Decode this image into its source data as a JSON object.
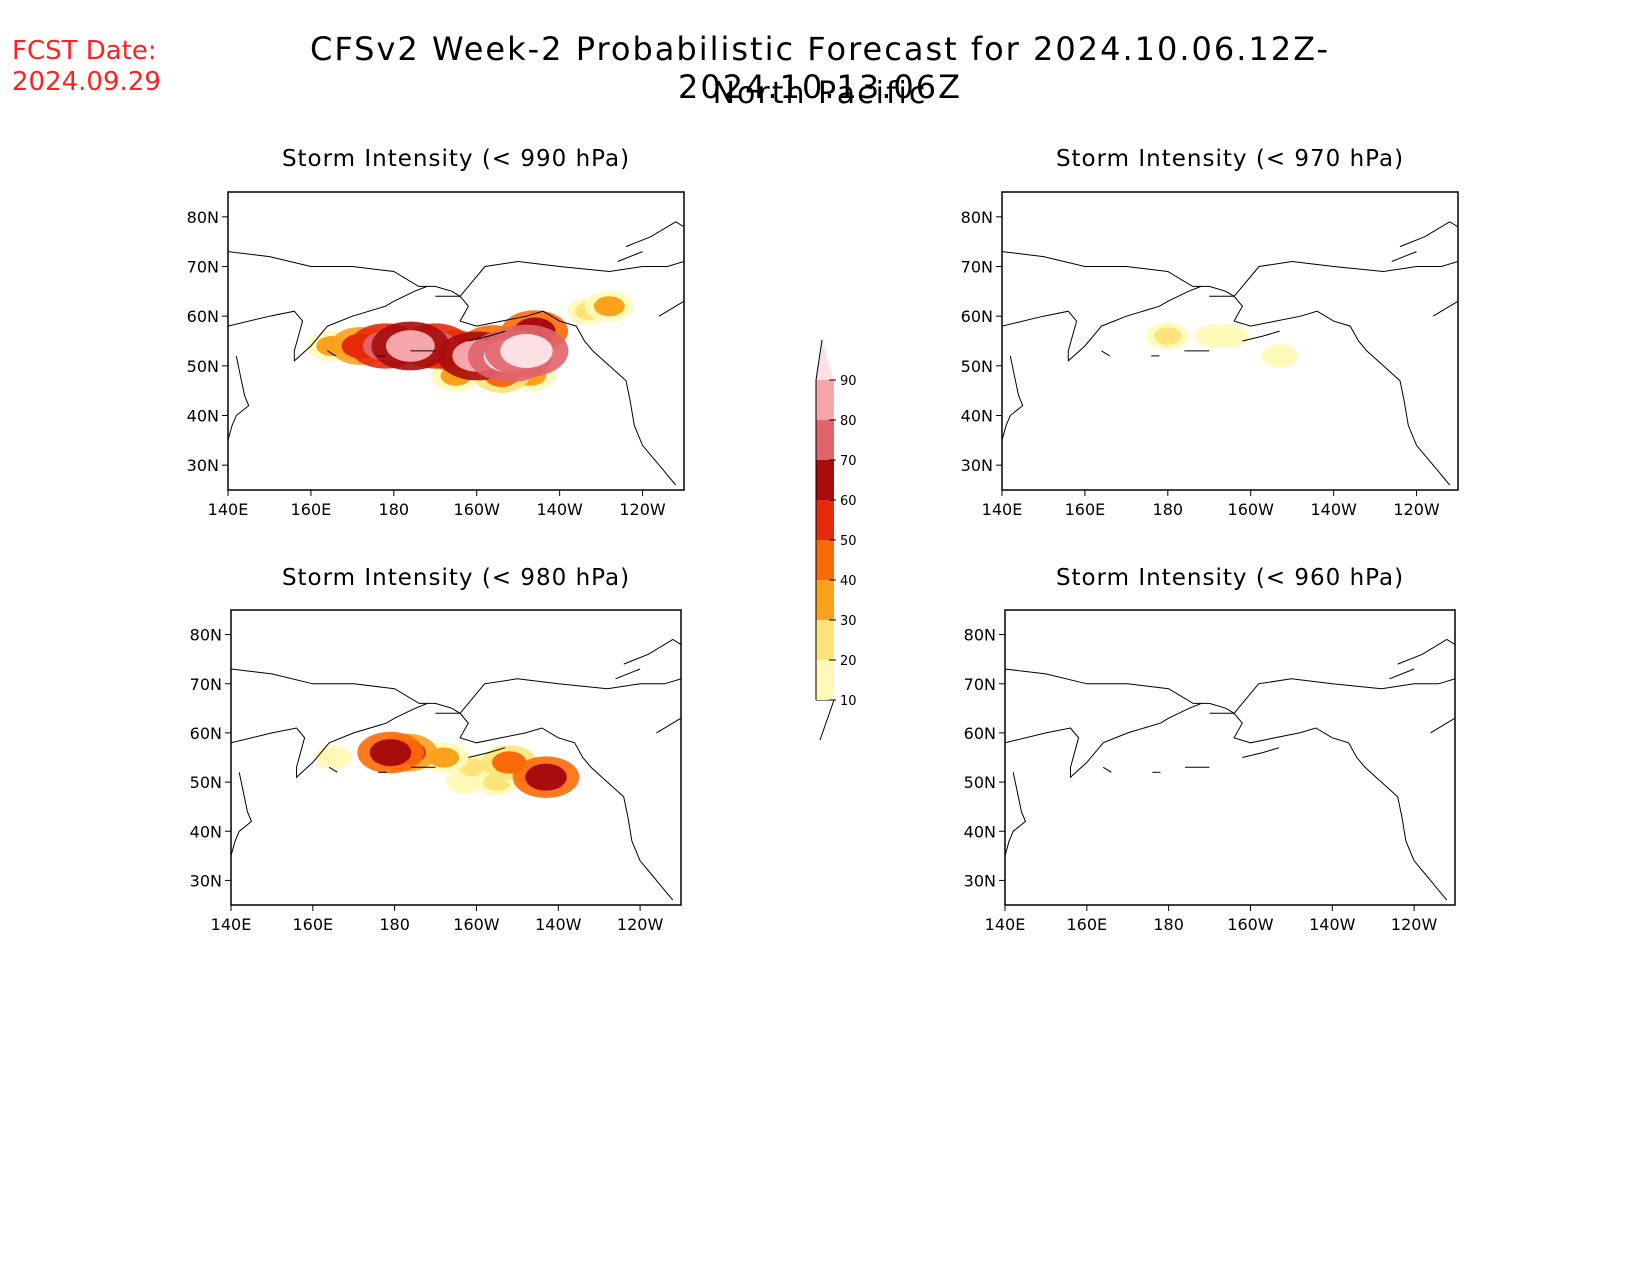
{
  "fcst_date": {
    "label": "FCST Date:",
    "value": "2024.09.29"
  },
  "title": "CFSv2 Week-2 Probabilistic Forecast for 2024.10.06.12Z-2024.10.13.06Z",
  "subtitle": "North Pacific",
  "lon_ticks": [
    "140E",
    "160E",
    "180",
    "160W",
    "140W",
    "120W"
  ],
  "lat_ticks": [
    "80N",
    "70N",
    "60N",
    "50N",
    "40N",
    "30N"
  ],
  "panels": [
    {
      "id": "p990",
      "title": "Storm Intensity (< 990 hPa)"
    },
    {
      "id": "p970",
      "title": "Storm Intensity (< 970 hPa)"
    },
    {
      "id": "p980",
      "title": "Storm Intensity (< 980 hPa)"
    },
    {
      "id": "p960",
      "title": "Storm Intensity (< 960 hPa)"
    }
  ],
  "colorbar": {
    "levels": [
      10,
      20,
      30,
      40,
      50,
      60,
      70,
      80,
      90
    ],
    "level_labels": [
      "10",
      "20",
      "30",
      "40",
      "50",
      "60",
      "70",
      "80",
      "90"
    ],
    "colors": [
      "#fff9b8",
      "#fde37a",
      "#fba11c",
      "#fb6a09",
      "#e62a0c",
      "#a80c0c",
      "#e0646a",
      "#f6a6aa",
      "#fde0e4"
    ]
  },
  "chart_data": {
    "type": "heatmap",
    "units": "probability (%)",
    "xlim_deg_east": [
      140,
      250
    ],
    "ylim_deg_north": [
      25,
      85
    ],
    "fields": {
      "p990": [
        {
          "lon": 165,
          "lat": 54,
          "value": 30
        },
        {
          "lon": 172,
          "lat": 54,
          "value": 50
        },
        {
          "lon": 178,
          "lat": 54,
          "value": 70
        },
        {
          "lon": 184,
          "lat": 54,
          "value": 80
        },
        {
          "lon": 190,
          "lat": 54,
          "value": 70
        },
        {
          "lon": 195,
          "lat": 53,
          "value": 60
        },
        {
          "lon": 200,
          "lat": 52,
          "value": 80
        },
        {
          "lon": 204,
          "lat": 54,
          "value": 60
        },
        {
          "lon": 208,
          "lat": 52,
          "value": 90
        },
        {
          "lon": 212,
          "lat": 53,
          "value": 90
        },
        {
          "lon": 214,
          "lat": 57,
          "value": 60
        },
        {
          "lon": 206,
          "lat": 48,
          "value": 40
        },
        {
          "lon": 213,
          "lat": 48,
          "value": 30
        },
        {
          "lon": 195,
          "lat": 48,
          "value": 30
        },
        {
          "lon": 232,
          "lat": 62,
          "value": 30
        },
        {
          "lon": 227,
          "lat": 61,
          "value": 20
        }
      ],
      "p970": [
        {
          "lon": 180,
          "lat": 56,
          "value": 20
        },
        {
          "lon": 191,
          "lat": 56,
          "value": 10
        },
        {
          "lon": 195,
          "lat": 56,
          "value": 10
        },
        {
          "lon": 207,
          "lat": 52,
          "value": 10
        }
      ],
      "p980": [
        {
          "lon": 165,
          "lat": 55,
          "value": 10
        },
        {
          "lon": 179,
          "lat": 56,
          "value": 60
        },
        {
          "lon": 183,
          "lat": 56,
          "value": 50
        },
        {
          "lon": 192,
          "lat": 55,
          "value": 30
        },
        {
          "lon": 199,
          "lat": 53,
          "value": 20
        },
        {
          "lon": 208,
          "lat": 54,
          "value": 40
        },
        {
          "lon": 212,
          "lat": 52,
          "value": 30
        },
        {
          "lon": 217,
          "lat": 51,
          "value": 60
        },
        {
          "lon": 205,
          "lat": 50,
          "value": 20
        },
        {
          "lon": 197,
          "lat": 50,
          "value": 10
        }
      ],
      "p960": []
    }
  }
}
